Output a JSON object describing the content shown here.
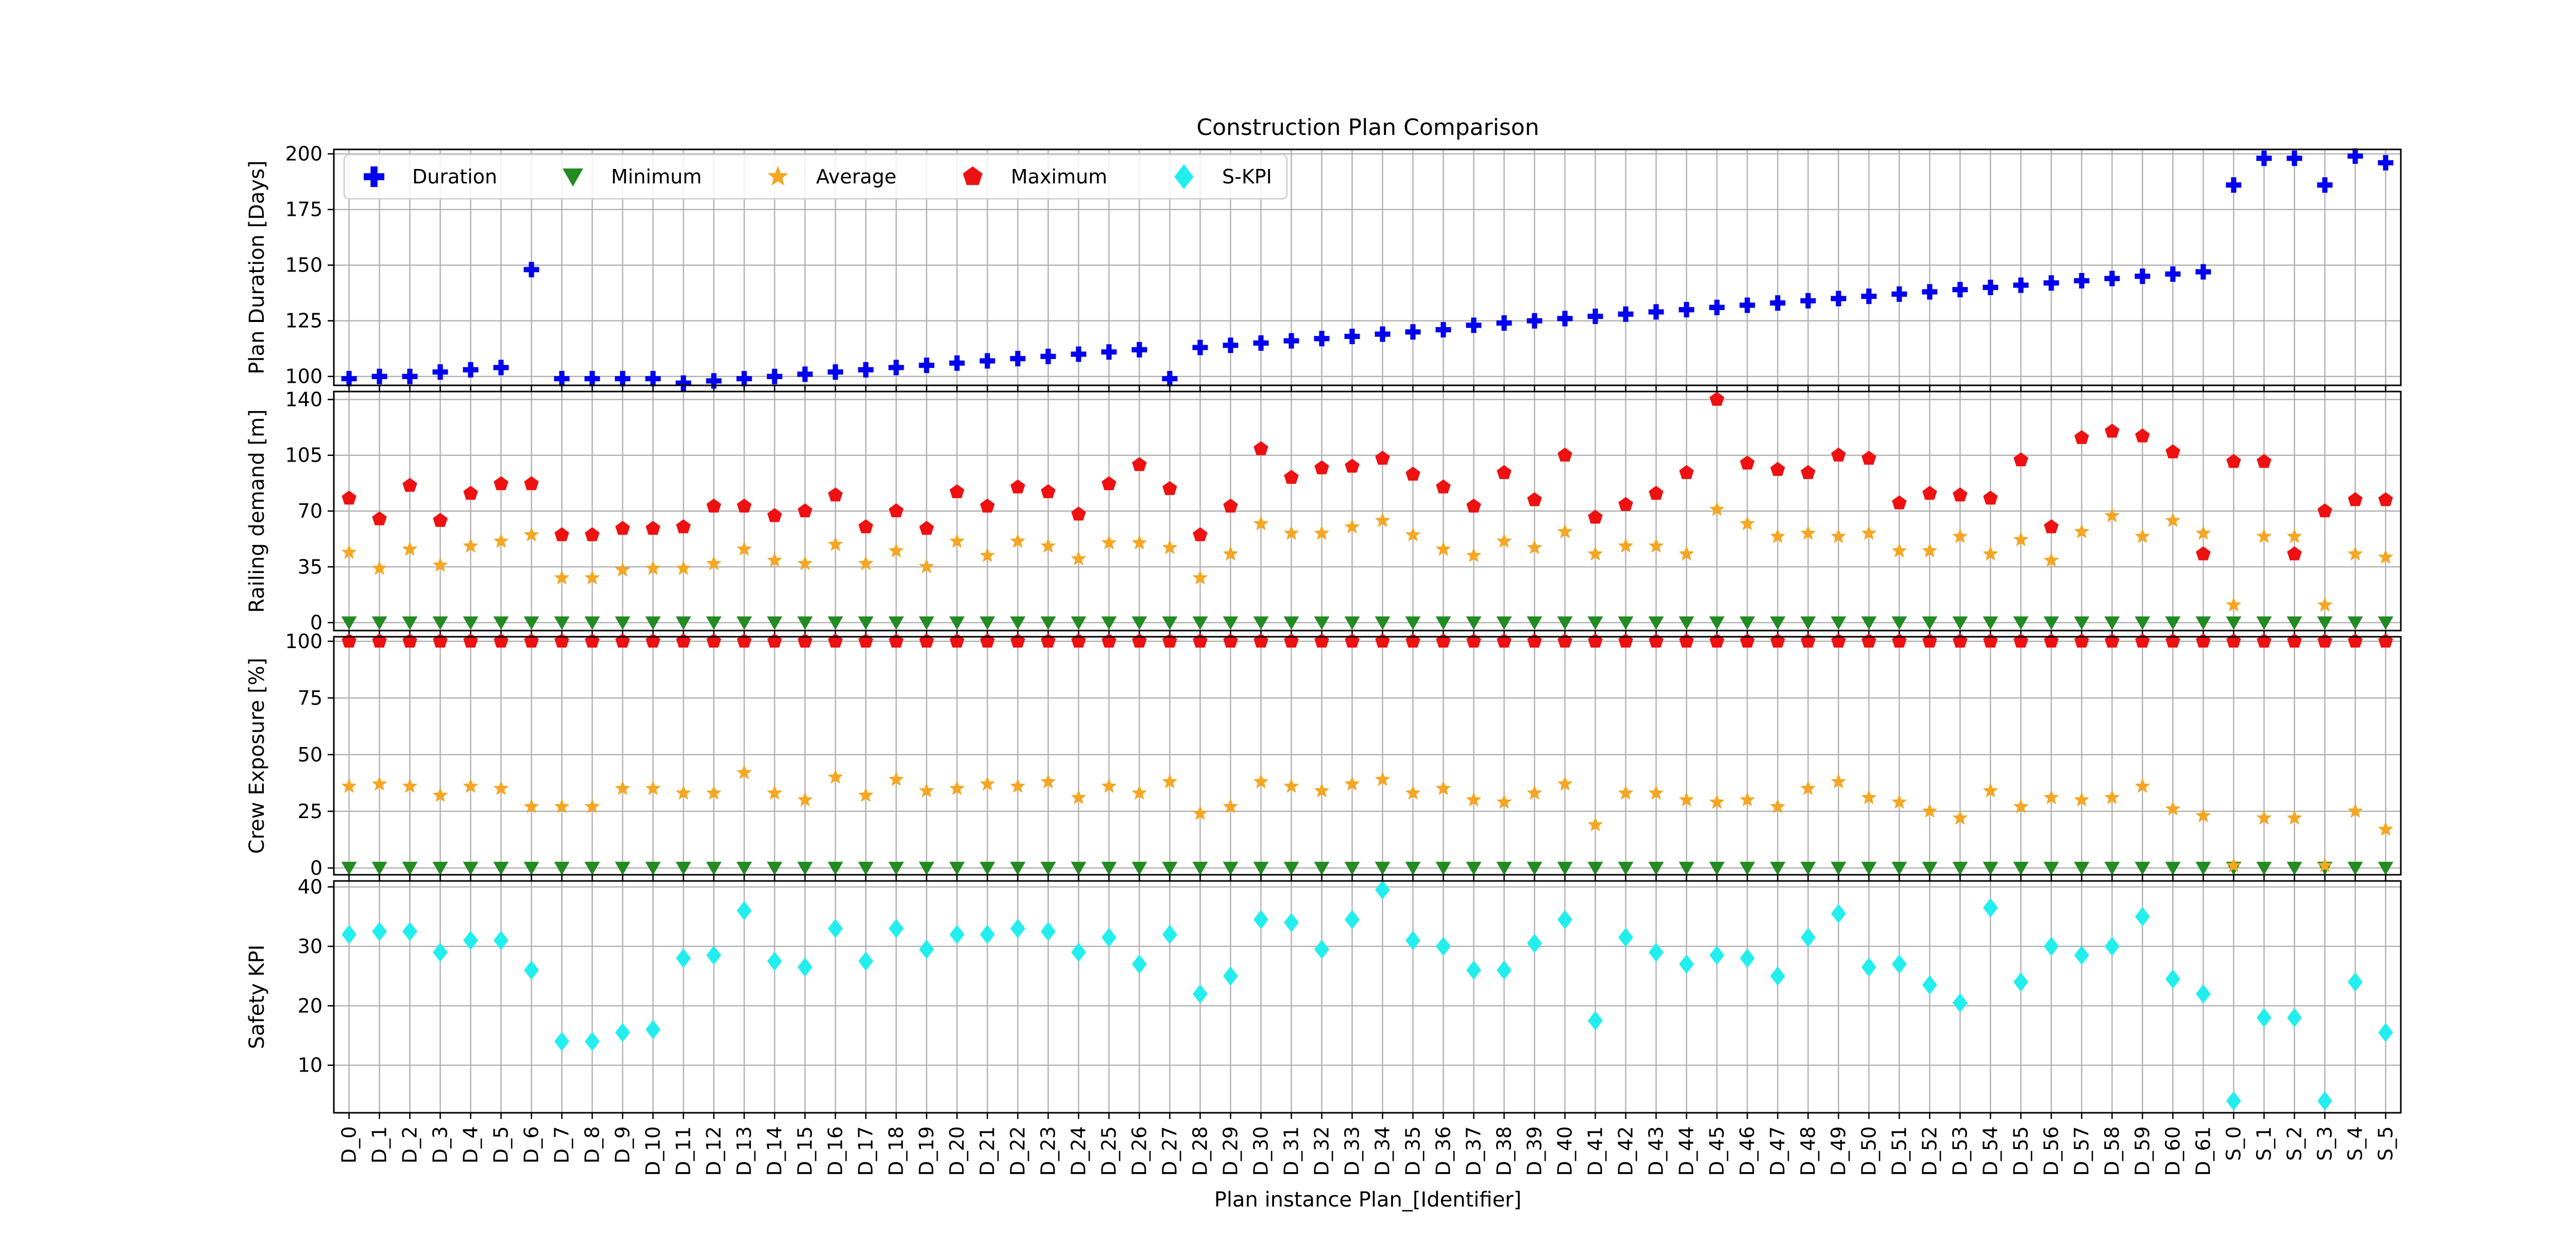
{
  "chart_data": {
    "type": "scatter",
    "title": "Construction Plan Comparison",
    "xlabel": "Plan instance Plan_[Identifier]",
    "categories": [
      "D_0",
      "D_1",
      "D_2",
      "D_3",
      "D_4",
      "D_5",
      "D_6",
      "D_7",
      "D_8",
      "D_9",
      "D_10",
      "D_11",
      "D_12",
      "D_13",
      "D_14",
      "D_15",
      "D_16",
      "D_17",
      "D_18",
      "D_19",
      "D_20",
      "D_21",
      "D_22",
      "D_23",
      "D_24",
      "D_25",
      "D_26",
      "D_27",
      "D_28",
      "D_29",
      "D_30",
      "D_31",
      "D_32",
      "D_33",
      "D_34",
      "D_35",
      "D_36",
      "D_37",
      "D_38",
      "D_39",
      "D_40",
      "D_41",
      "D_42",
      "D_43",
      "D_44",
      "D_45",
      "D_46",
      "D_47",
      "D_48",
      "D_49",
      "D_50",
      "D_51",
      "D_52",
      "D_53",
      "D_54",
      "D_55",
      "D_56",
      "D_57",
      "D_58",
      "D_59",
      "D_60",
      "D_61",
      "S_0",
      "S_1",
      "S_2",
      "S_3",
      "S_4",
      "S_5"
    ],
    "legend": {
      "placement": "top-left",
      "entries": [
        {
          "name": "Duration",
          "marker": "plus",
          "color": "#0000ee"
        },
        {
          "name": "Minimum",
          "marker": "triangle-down",
          "color": "#228b22"
        },
        {
          "name": "Average",
          "marker": "star",
          "color": "#f5a623"
        },
        {
          "name": "Maximum",
          "marker": "pentagon",
          "color": "#ee1111"
        },
        {
          "name": "S-KPI",
          "marker": "diamond",
          "color": "#22eeee"
        }
      ]
    },
    "grid": true,
    "panels": [
      {
        "ylabel": "Plan Duration [Days]",
        "ylim": [
          96,
          202
        ],
        "yticks": [
          100,
          125,
          150,
          175,
          200
        ],
        "series": [
          {
            "name": "Duration",
            "marker": "plus",
            "color": "#0000ee",
            "values": [
              99,
              100,
              100,
              102,
              103,
              104,
              148,
              99,
              99,
              99,
              99,
              97,
              98,
              99,
              100,
              101,
              102,
              103,
              104,
              105,
              106,
              107,
              108,
              109,
              110,
              111,
              112,
              99,
              113,
              114,
              115,
              116,
              117,
              118,
              119,
              120,
              121,
              123,
              124,
              125,
              126,
              127,
              128,
              129,
              130,
              131,
              132,
              133,
              134,
              135,
              136,
              137,
              138,
              139,
              140,
              141,
              142,
              143,
              144,
              145,
              146,
              147,
              186,
              198,
              198,
              186,
              199,
              196
            ]
          }
        ]
      },
      {
        "ylabel": "Railing demand [m]",
        "ylim": [
          -5,
          145
        ],
        "yticks": [
          0,
          35,
          70,
          105,
          140
        ],
        "series": [
          {
            "name": "Minimum",
            "marker": "triangle-down",
            "color": "#228b22",
            "values": [
              0,
              0,
              0,
              0,
              0,
              0,
              0,
              0,
              0,
              0,
              0,
              0,
              0,
              0,
              0,
              0,
              0,
              0,
              0,
              0,
              0,
              0,
              0,
              0,
              0,
              0,
              0,
              0,
              0,
              0,
              0,
              0,
              0,
              0,
              0,
              0,
              0,
              0,
              0,
              0,
              0,
              0,
              0,
              0,
              0,
              0,
              0,
              0,
              0,
              0,
              0,
              0,
              0,
              0,
              0,
              0,
              0,
              0,
              0,
              0,
              0,
              0,
              0,
              0,
              0,
              0,
              0,
              0
            ]
          },
          {
            "name": "Average",
            "marker": "star",
            "color": "#f5a623",
            "values": [
              44,
              34,
              46,
              36,
              48,
              51,
              55,
              28,
              28,
              33,
              34,
              34,
              37,
              46,
              39,
              37,
              49,
              37,
              45,
              35,
              51,
              42,
              51,
              48,
              40,
              50,
              50,
              47,
              28,
              43,
              62,
              56,
              56,
              60,
              64,
              55,
              46,
              42,
              51,
              47,
              57,
              43,
              48,
              48,
              43,
              71,
              62,
              54,
              56,
              54,
              56,
              45,
              45,
              54,
              43,
              52,
              39,
              57,
              67,
              54,
              64,
              56,
              11,
              54,
              54,
              11,
              43,
              41
            ]
          },
          {
            "name": "Maximum",
            "marker": "pentagon",
            "color": "#ee1111",
            "values": [
              78,
              65,
              86,
              64,
              81,
              87,
              87,
              55,
              55,
              59,
              59,
              60,
              73,
              73,
              67,
              70,
              80,
              60,
              70,
              59,
              82,
              73,
              85,
              82,
              68,
              87,
              99,
              84,
              55,
              73,
              109,
              91,
              97,
              98,
              103,
              93,
              85,
              73,
              94,
              77,
              105,
              66,
              74,
              81,
              94,
              140,
              100,
              96,
              94,
              105,
              103,
              75,
              81,
              80,
              78,
              102,
              60,
              116,
              120,
              117,
              107,
              43,
              101,
              101,
              43,
              70,
              77,
              77
            ]
          }
        ]
      },
      {
        "ylabel": "Crew Exposure [%]",
        "ylim": [
          -3,
          102
        ],
        "yticks": [
          0,
          25,
          50,
          75,
          100
        ],
        "series": [
          {
            "name": "Minimum",
            "marker": "triangle-down",
            "color": "#228b22",
            "values": [
              0,
              0,
              0,
              0,
              0,
              0,
              0,
              0,
              0,
              0,
              0,
              0,
              0,
              0,
              0,
              0,
              0,
              0,
              0,
              0,
              0,
              0,
              0,
              0,
              0,
              0,
              0,
              0,
              0,
              0,
              0,
              0,
              0,
              0,
              0,
              0,
              0,
              0,
              0,
              0,
              0,
              0,
              0,
              0,
              0,
              0,
              0,
              0,
              0,
              0,
              0,
              0,
              0,
              0,
              0,
              0,
              0,
              0,
              0,
              0,
              0,
              0,
              0,
              0,
              0,
              0,
              0,
              0
            ]
          },
          {
            "name": "Average",
            "marker": "star",
            "color": "#f5a623",
            "values": [
              36,
              37,
              36,
              32,
              36,
              35,
              27,
              27,
              27,
              35,
              35,
              33,
              33,
              42,
              33,
              30,
              40,
              32,
              39,
              34,
              35,
              37,
              36,
              38,
              31,
              36,
              33,
              38,
              24,
              27,
              38,
              36,
              34,
              37,
              39,
              33,
              35,
              30,
              29,
              33,
              37,
              19,
              33,
              33,
              30,
              29,
              30,
              27,
              35,
              38,
              31,
              29,
              25,
              22,
              34,
              27,
              31,
              30,
              31,
              36,
              26,
              23,
              1,
              22,
              22,
              1,
              25,
              17
            ]
          },
          {
            "name": "Maximum",
            "marker": "pentagon",
            "color": "#ee1111",
            "values": [
              100,
              100,
              100,
              100,
              100,
              100,
              100,
              100,
              100,
              100,
              100,
              100,
              100,
              100,
              100,
              100,
              100,
              100,
              100,
              100,
              100,
              100,
              100,
              100,
              100,
              100,
              100,
              100,
              100,
              100,
              100,
              100,
              100,
              100,
              100,
              100,
              100,
              100,
              100,
              100,
              100,
              100,
              100,
              100,
              100,
              100,
              100,
              100,
              100,
              100,
              100,
              100,
              100,
              100,
              100,
              100,
              100,
              100,
              100,
              100,
              100,
              100,
              100,
              100,
              100,
              100,
              100,
              100
            ]
          }
        ]
      },
      {
        "ylabel": "Safety KPI",
        "ylim": [
          2,
          41
        ],
        "yticks": [
          10,
          20,
          30,
          40
        ],
        "series": [
          {
            "name": "S-KPI",
            "marker": "diamond",
            "color": "#22eeee",
            "values": [
              32,
              32.5,
              32.5,
              29,
              31,
              31,
              26,
              14,
              14,
              15.5,
              16,
              28,
              28.5,
              36,
              27.5,
              26.5,
              33,
              27.5,
              33,
              29.5,
              32,
              32,
              33,
              32.5,
              29,
              31.5,
              27,
              32,
              22,
              25,
              34.5,
              34,
              29.5,
              34.5,
              39.5,
              31,
              30,
              26,
              26,
              30.5,
              34.5,
              17.5,
              31.5,
              29,
              27,
              28.5,
              28,
              25,
              31.5,
              35.5,
              26.5,
              27,
              23.5,
              20.5,
              36.5,
              24,
              30,
              28.5,
              30,
              35,
              24.5,
              22,
              4,
              18,
              18,
              4,
              24,
              15.5
            ]
          }
        ]
      }
    ]
  }
}
